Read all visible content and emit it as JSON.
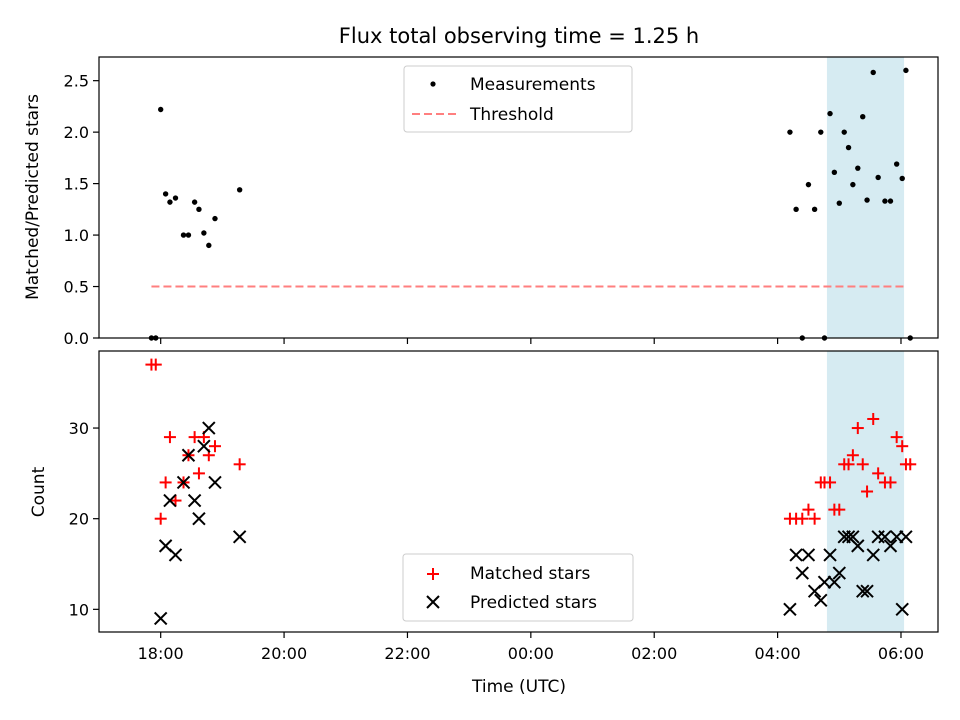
{
  "figure": {
    "title": "Flux total observing time = 1.25 h",
    "xlabel": "Time (UTC)",
    "xticks": [
      "18:00",
      "20:00",
      "22:00",
      "00:00",
      "02:00",
      "04:00",
      "06:00"
    ]
  },
  "colors": {
    "measurement": "#000000",
    "threshold": "#ff7f7f",
    "matched": "#ff0000",
    "predicted": "#000000",
    "span": "#add8e6"
  },
  "chart_data": [
    {
      "type": "scatter",
      "panel": "top",
      "ylabel": "Matched/Predicted stars",
      "ylim": [
        0,
        2.73
      ],
      "yticks": [
        "0.0",
        "0.5",
        "1.0",
        "1.5",
        "2.0",
        "2.5"
      ],
      "xlim_hours_after_midnight": [
        -7.0,
        6.6
      ],
      "highlight_span_hours": [
        4.8,
        6.05
      ],
      "legend": {
        "placement": "upper center",
        "entries": [
          "Measurements",
          "Threshold"
        ]
      },
      "threshold": {
        "name": "Threshold",
        "value": 0.5,
        "x_range_hours": [
          -6.15,
          6.05
        ]
      },
      "series": [
        {
          "name": "Measurements",
          "x": [
            -6.15,
            -6.08,
            -6.0,
            -5.92,
            -5.85,
            -5.76,
            -5.63,
            -5.55,
            -5.45,
            -5.38,
            -5.3,
            -5.22,
            -5.12,
            -4.72,
            4.2,
            4.3,
            4.4,
            4.5,
            4.6,
            4.7,
            4.76,
            4.85,
            4.92,
            5.0,
            5.08,
            5.15,
            5.22,
            5.3,
            5.38,
            5.45,
            5.55,
            5.63,
            5.74,
            5.83,
            5.93,
            6.02,
            6.08,
            6.15
          ],
          "y": [
            0.0,
            0.0,
            2.22,
            1.4,
            1.32,
            1.36,
            1.0,
            1.0,
            1.32,
            1.25,
            1.02,
            0.9,
            1.16,
            1.44,
            2.0,
            1.25,
            0.0,
            1.49,
            1.25,
            2.0,
            0.0,
            2.18,
            1.61,
            1.31,
            2.0,
            1.85,
            1.49,
            1.65,
            2.15,
            1.34,
            2.58,
            1.56,
            1.33,
            1.33,
            1.69,
            1.55,
            2.6,
            0.0
          ]
        }
      ]
    },
    {
      "type": "scatter",
      "panel": "bottom",
      "ylabel": "Count",
      "ylim": [
        7.5,
        38.5
      ],
      "yticks": [
        "10",
        "20",
        "30"
      ],
      "xlim_hours_after_midnight": [
        -7.0,
        6.6
      ],
      "highlight_span_hours": [
        4.8,
        6.05
      ],
      "legend": {
        "placement": "lower center",
        "entries": [
          "Matched stars",
          "Predicted stars"
        ]
      },
      "series": [
        {
          "name": "Matched stars",
          "marker": "plus",
          "x": [
            -6.15,
            -6.08,
            -6.0,
            -5.92,
            -5.85,
            -5.76,
            -5.63,
            -5.55,
            -5.45,
            -5.38,
            -5.3,
            -5.22,
            -5.12,
            -4.72,
            4.2,
            4.3,
            4.4,
            4.5,
            4.6,
            4.7,
            4.76,
            4.85,
            4.92,
            5.0,
            5.08,
            5.15,
            5.22,
            5.3,
            5.38,
            5.45,
            5.55,
            5.63,
            5.74,
            5.83,
            5.93,
            6.02,
            6.08,
            6.15
          ],
          "y": [
            37,
            37,
            20,
            24,
            29,
            22,
            24,
            27,
            29,
            25,
            29,
            27,
            28,
            26,
            20,
            20,
            20,
            21,
            20,
            24,
            24,
            24,
            21,
            21,
            26,
            26,
            27,
            30,
            26,
            23,
            31,
            25,
            24,
            24,
            29,
            28,
            26,
            26
          ]
        },
        {
          "name": "Predicted stars",
          "marker": "x",
          "x": [
            -6.0,
            -5.92,
            -5.85,
            -5.76,
            -5.63,
            -5.55,
            -5.45,
            -5.38,
            -5.3,
            -5.22,
            -5.12,
            -4.72,
            4.2,
            4.3,
            4.4,
            4.5,
            4.6,
            4.7,
            4.76,
            4.85,
            4.92,
            5.0,
            5.08,
            5.15,
            5.22,
            5.3,
            5.38,
            5.45,
            5.55,
            5.63,
            5.74,
            5.83,
            5.93,
            6.02,
            6.08
          ],
          "y": [
            9,
            17,
            22,
            16,
            24,
            27,
            22,
            20,
            28,
            30,
            24,
            18,
            10,
            16,
            14,
            16,
            12,
            11,
            13,
            16,
            13,
            14,
            18,
            18,
            18,
            17,
            12,
            12,
            16,
            18,
            18,
            17,
            18,
            10,
            18
          ]
        }
      ]
    }
  ]
}
